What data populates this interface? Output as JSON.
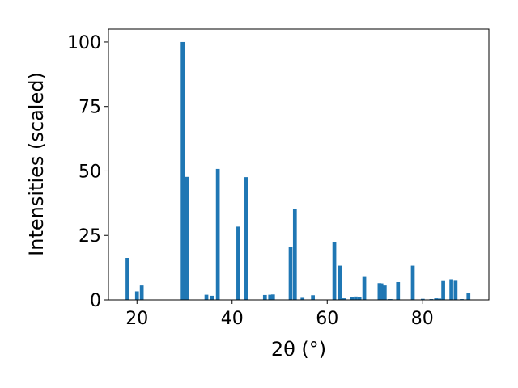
{
  "chart_data": {
    "type": "bar",
    "xlabel": "2θ (°)",
    "ylabel": "Intensities (scaled)",
    "xlim": [
      14,
      94
    ],
    "ylim": [
      0,
      105
    ],
    "xticks": [
      20,
      40,
      60,
      80
    ],
    "yticks": [
      0,
      25,
      50,
      75,
      100
    ],
    "xtick_labels": [
      "20",
      "40",
      "60",
      "80"
    ],
    "ytick_labels": [
      "0",
      "25",
      "50",
      "75",
      "100"
    ],
    "bar_color": "#1f77b4",
    "bar_width": 0.8,
    "x": [
      18.0,
      20.0,
      21.0,
      29.6,
      30.5,
      34.6,
      35.8,
      37.0,
      41.3,
      43.0,
      46.9,
      48.0,
      48.6,
      52.3,
      53.2,
      54.8,
      57.0,
      61.5,
      62.7,
      63.5,
      65.2,
      66.0,
      66.8,
      67.8,
      71.0,
      71.4,
      72.1,
      73.3,
      74.9,
      78.0,
      80.1,
      81.9,
      82.9,
      83.6,
      84.4,
      86.1,
      87.0,
      88.3,
      89.7
    ],
    "values": [
      16.3,
      3.3,
      5.6,
      100.0,
      47.7,
      2.0,
      1.6,
      50.8,
      28.4,
      47.6,
      1.9,
      2.0,
      2.1,
      20.4,
      35.3,
      0.8,
      1.8,
      22.5,
      13.3,
      0.6,
      1.0,
      1.3,
      1.2,
      8.9,
      6.5,
      6.4,
      5.6,
      0.3,
      6.9,
      13.3,
      0.4,
      0.3,
      0.6,
      0.5,
      7.3,
      8.0,
      7.4,
      0.3,
      2.5
    ]
  }
}
